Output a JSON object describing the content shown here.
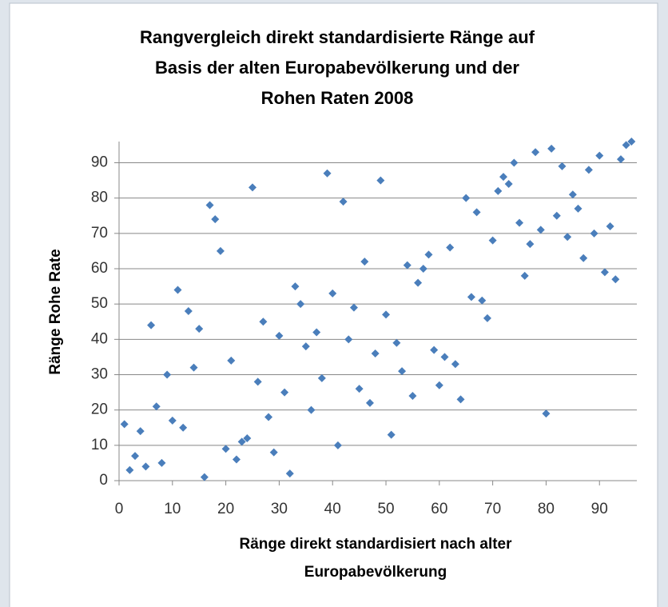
{
  "chart_data": {
    "type": "scatter",
    "title": [
      "Rangvergleich direkt standardisierte Ränge auf",
      "Basis der alten Europabevölkerung und der",
      "Rohen Raten 2008"
    ],
    "x_label": [
      "Ränge direkt standardisiert  nach alter",
      "Europabevölkerung"
    ],
    "y_label": "Ränge Rohe Rate",
    "series": [
      {
        "color": "#4a7ebb",
        "x": [
          1,
          2,
          3,
          4,
          5,
          6,
          7,
          8,
          9,
          10,
          11,
          12,
          13,
          14,
          15,
          16,
          17,
          18,
          19,
          20,
          21,
          22,
          23,
          24,
          25,
          26,
          27,
          28,
          29,
          30,
          31,
          32,
          33,
          34,
          35,
          36,
          37,
          38,
          39,
          40,
          41,
          42,
          43,
          44,
          45,
          46,
          47,
          48,
          49,
          50,
          51,
          52,
          53,
          54,
          55,
          56,
          57,
          58,
          59,
          60,
          61,
          62,
          63,
          64,
          65,
          66,
          67,
          68,
          69,
          70,
          71,
          72,
          73,
          74,
          75,
          76,
          77,
          78,
          79,
          80,
          81,
          82,
          83,
          84,
          85,
          86,
          87,
          88,
          89,
          90,
          91,
          92,
          93,
          94,
          95,
          96
        ],
        "values": [
          16,
          3,
          7,
          14,
          4,
          44,
          21,
          5,
          30,
          17,
          54,
          15,
          48,
          32,
          43,
          1,
          78,
          74,
          65,
          9,
          34,
          6,
          11,
          12,
          83,
          28,
          45,
          18,
          8,
          41,
          25,
          2,
          55,
          50,
          38,
          20,
          42,
          29,
          87,
          53,
          10,
          79,
          40,
          49,
          26,
          62,
          22,
          36,
          85,
          47,
          13,
          39,
          31,
          61,
          24,
          56,
          60,
          64,
          37,
          27,
          35,
          66,
          33,
          23,
          80,
          52,
          76,
          51,
          46,
          68,
          82,
          86,
          84,
          90,
          73,
          58,
          67,
          93,
          71,
          19,
          94,
          75,
          89,
          69,
          81,
          77,
          63,
          88,
          70,
          92,
          59,
          72,
          57,
          91,
          95,
          96
        ]
      }
    ],
    "xlim": [
      0,
      97
    ],
    "xticks": [
      0,
      10,
      20,
      30,
      40,
      50,
      60,
      70,
      80,
      90
    ],
    "ylim": [
      0,
      96
    ],
    "yticks": [
      0,
      10,
      20,
      30,
      40,
      50,
      60,
      70,
      80,
      90
    ],
    "grid": true
  }
}
